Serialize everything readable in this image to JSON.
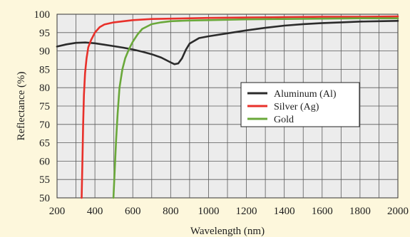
{
  "chart_data": {
    "type": "line",
    "xlabel": "Wavelength (nm)",
    "ylabel": "Reflectance (%)",
    "xlim": [
      200,
      2000
    ],
    "ylim": [
      50,
      100
    ],
    "x_ticks": [
      "200",
      "400",
      "600",
      "800",
      "1000",
      "1200",
      "1400",
      "1600",
      "1800",
      "2000"
    ],
    "y_ticks": [
      "50",
      "55",
      "60",
      "65",
      "70",
      "75",
      "80",
      "85",
      "90",
      "95",
      "100"
    ],
    "grid": true,
    "legend_position": "center-right",
    "series": [
      {
        "name": "Aluminum (Al)",
        "color": "#2b2b2b",
        "points": [
          [
            200,
            91.2
          ],
          [
            250,
            91.8
          ],
          [
            300,
            92.2
          ],
          [
            350,
            92.3
          ],
          [
            400,
            92.1
          ],
          [
            450,
            91.7
          ],
          [
            500,
            91.3
          ],
          [
            550,
            90.9
          ],
          [
            600,
            90.4
          ],
          [
            650,
            89.8
          ],
          [
            700,
            89.1
          ],
          [
            750,
            88.2
          ],
          [
            800,
            86.9
          ],
          [
            820,
            86.4
          ],
          [
            840,
            86.6
          ],
          [
            860,
            88.0
          ],
          [
            880,
            90.3
          ],
          [
            900,
            92.0
          ],
          [
            950,
            93.5
          ],
          [
            1000,
            94.0
          ],
          [
            1100,
            94.8
          ],
          [
            1200,
            95.6
          ],
          [
            1300,
            96.3
          ],
          [
            1400,
            96.9
          ],
          [
            1500,
            97.3
          ],
          [
            1600,
            97.6
          ],
          [
            1700,
            97.8
          ],
          [
            1800,
            98.0
          ],
          [
            1900,
            98.1
          ],
          [
            2000,
            98.2
          ]
        ]
      },
      {
        "name": "Silver (Ag)",
        "color": "#e8302a",
        "points": [
          [
            330,
            50
          ],
          [
            334,
            60
          ],
          [
            338,
            70
          ],
          [
            342,
            78
          ],
          [
            348,
            84
          ],
          [
            356,
            88
          ],
          [
            365,
            91
          ],
          [
            380,
            93
          ],
          [
            400,
            95
          ],
          [
            425,
            96.5
          ],
          [
            450,
            97.2
          ],
          [
            500,
            97.8
          ],
          [
            600,
            98.4
          ],
          [
            700,
            98.7
          ],
          [
            800,
            98.8
          ],
          [
            1000,
            99.0
          ],
          [
            1200,
            99.1
          ],
          [
            1400,
            99.2
          ],
          [
            1600,
            99.3
          ],
          [
            1800,
            99.3
          ],
          [
            2000,
            99.4
          ]
        ]
      },
      {
        "name": "Gold",
        "color": "#6aa83a",
        "points": [
          [
            498,
            50
          ],
          [
            505,
            58
          ],
          [
            512,
            66
          ],
          [
            520,
            73
          ],
          [
            530,
            80
          ],
          [
            545,
            85
          ],
          [
            560,
            88
          ],
          [
            580,
            90.5
          ],
          [
            600,
            92.5
          ],
          [
            625,
            94.5
          ],
          [
            650,
            96
          ],
          [
            700,
            97.3
          ],
          [
            750,
            97.8
          ],
          [
            800,
            98.1
          ],
          [
            900,
            98.3
          ],
          [
            1000,
            98.4
          ],
          [
            1200,
            98.6
          ],
          [
            1400,
            98.7
          ],
          [
            1600,
            98.8
          ],
          [
            1800,
            98.9
          ],
          [
            2000,
            98.9
          ]
        ]
      }
    ]
  }
}
